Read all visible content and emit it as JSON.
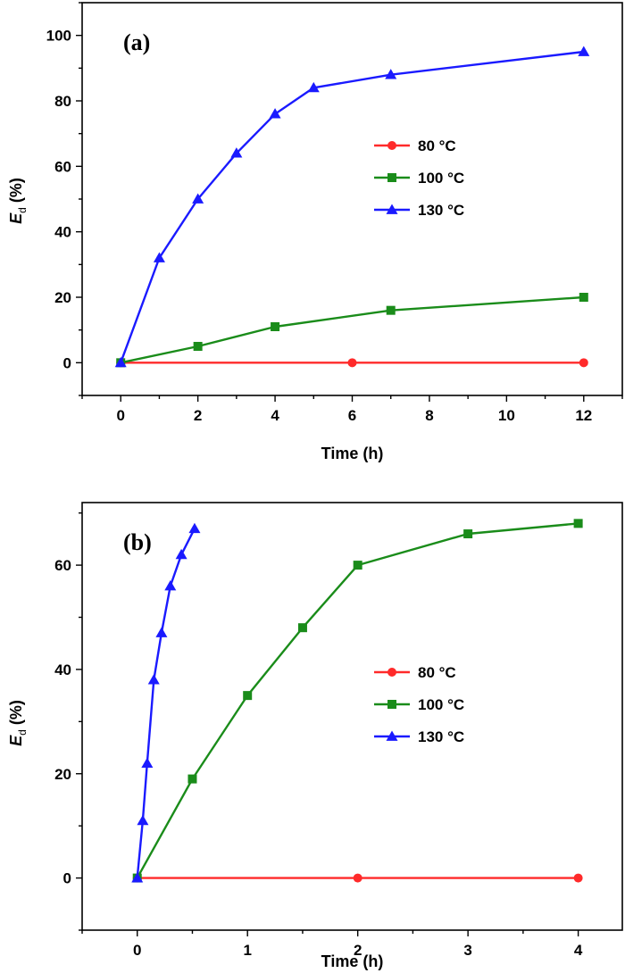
{
  "chart_data": [
    {
      "type": "line",
      "panel_label": "(a)",
      "xlabel": "Time (h)",
      "ylabel": {
        "var": "E",
        "sub": "d",
        "unit": "(%)"
      },
      "xlim": [
        -1,
        13
      ],
      "ylim": [
        -10,
        110
      ],
      "xticks": [
        0,
        2,
        4,
        6,
        8,
        10,
        12
      ],
      "yticks": [
        0,
        20,
        40,
        60,
        80,
        100
      ],
      "legend_position": "center-right",
      "grid": false,
      "series": [
        {
          "name": "80 °C",
          "color": "#ff2a2a",
          "marker": "circle",
          "x": [
            0,
            6,
            12
          ],
          "y": [
            0,
            0,
            0
          ]
        },
        {
          "name": "100 °C",
          "color": "#1a8c1a",
          "marker": "square",
          "x": [
            0,
            2,
            4,
            7,
            12
          ],
          "y": [
            0,
            5,
            11,
            16,
            20
          ]
        },
        {
          "name": "130 °C",
          "color": "#1a1aff",
          "marker": "triangle",
          "x": [
            0,
            1,
            2,
            3,
            4,
            5,
            7,
            12
          ],
          "y": [
            0,
            32,
            50,
            64,
            76,
            84,
            88,
            95
          ]
        }
      ]
    },
    {
      "type": "line",
      "panel_label": "(b)",
      "xlabel": "Time (h)",
      "ylabel": {
        "var": "E",
        "sub": "d",
        "unit": "(%)"
      },
      "xlim": [
        -0.5,
        4.4
      ],
      "ylim": [
        -10,
        72
      ],
      "xticks": [
        0,
        1,
        2,
        3,
        4
      ],
      "yticks": [
        0,
        20,
        40,
        60
      ],
      "legend_position": "center-right",
      "grid": false,
      "series": [
        {
          "name": "80 °C",
          "color": "#ff2a2a",
          "marker": "circle",
          "x": [
            0,
            2,
            4
          ],
          "y": [
            0,
            0,
            0
          ]
        },
        {
          "name": "100 °C",
          "color": "#1a8c1a",
          "marker": "square",
          "x": [
            0,
            0.5,
            1,
            1.5,
            2,
            3,
            4
          ],
          "y": [
            0,
            19,
            35,
            48,
            60,
            66,
            68
          ]
        },
        {
          "name": "130 °C",
          "color": "#1a1aff",
          "marker": "triangle",
          "x": [
            0,
            0.05,
            0.09,
            0.15,
            0.22,
            0.3,
            0.4,
            0.52
          ],
          "y": [
            0,
            11,
            22,
            38,
            47,
            56,
            62,
            67
          ]
        }
      ]
    }
  ]
}
